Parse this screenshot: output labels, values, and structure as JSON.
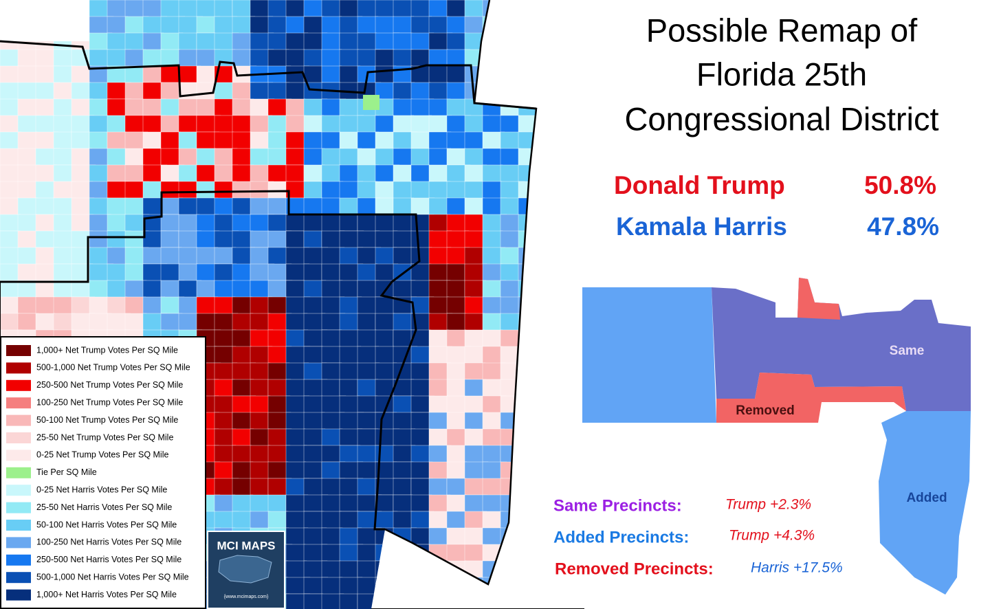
{
  "title": [
    "Possible Remap of",
    "Florida 25th",
    "Congressional District"
  ],
  "results": [
    {
      "candidate": "Donald Trump",
      "share": "50.8%"
    },
    {
      "candidate": "Kamala Harris",
      "share": "47.8%"
    }
  ],
  "inset_labels": [
    "Same",
    "Removed",
    "Added"
  ],
  "precincts": [
    {
      "label": "Same Precincts:",
      "margin": "Trump +2.3%"
    },
    {
      "label": "Added Precincts:",
      "margin": "Trump +4.3%"
    },
    {
      "label": "Removed Precincts:",
      "margin": "Harris +17.5%"
    }
  ],
  "legend": [
    {
      "label": "1,000+ Net Trump Votes Per SQ Mile",
      "color": "#750000"
    },
    {
      "label": "500-1,000 Net Trump Votes Per SQ Mile",
      "color": "#b00000"
    },
    {
      "label": "250-500 Net Trump Votes Per SQ Mile",
      "color": "#f20000"
    },
    {
      "label": "100-250 Net Trump Votes Per SQ Mile",
      "color": "#f57f7f"
    },
    {
      "label": "50-100 Net Trump Votes Per SQ Mile",
      "color": "#f9b8b8"
    },
    {
      "label": "25-50 Net Trump Votes Per SQ Mile",
      "color": "#fbd6d6"
    },
    {
      "label": "0-25 Net Trump Votes Per SQ Mile",
      "color": "#fdeaea"
    },
    {
      "label": "Tie Per SQ Mile",
      "color": "#9cf08c"
    },
    {
      "label": "0-25 Net Harris Votes Per SQ Mile",
      "color": "#c9f7fb"
    },
    {
      "label": "25-50 Net Harris Votes Per SQ Mile",
      "color": "#92eaf5"
    },
    {
      "label": "50-100 Net Harris Votes Per SQ Mile",
      "color": "#68cdf5"
    },
    {
      "label": "100-250 Net Harris Votes Per SQ Mile",
      "color": "#6aa8f0"
    },
    {
      "label": "250-500 Net Harris Votes Per SQ Mile",
      "color": "#1678f0"
    },
    {
      "label": "500-1,000 Net Harris Votes Per SQ Mile",
      "color": "#0a50b4"
    },
    {
      "label": "1,000+ Net Harris Votes Per SQ Mile",
      "color": "#062f7c"
    }
  ],
  "logo": {
    "title": "MCI MAPS",
    "url": "{www.mcimaps.com}"
  }
}
